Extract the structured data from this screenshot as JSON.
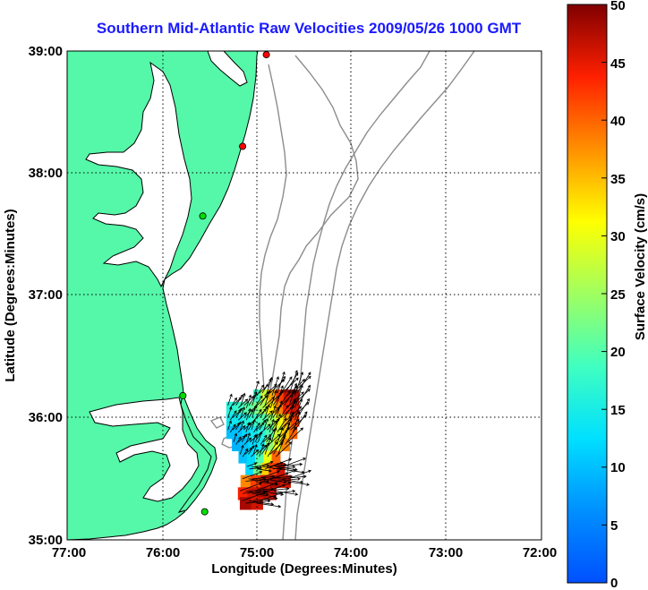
{
  "title": "Southern Mid-Atlantic Raw Velocities 2009/05/26 1000 GMT",
  "x_axis": {
    "label": "Longitude (Degrees:Minutes)",
    "ticks": [
      "77:00",
      "76:00",
      "75:00",
      "74:00",
      "73:00",
      "72:00"
    ]
  },
  "y_axis": {
    "label": "Latitude (Degrees:Minutes)",
    "ticks": [
      "39:00",
      "38:00",
      "37:00",
      "36:00",
      "35:00"
    ]
  },
  "colorbar": {
    "label": "Surface Velocity (cm/s)",
    "ticks": [
      "50",
      "45",
      "40",
      "35",
      "30",
      "25",
      "20",
      "15",
      "10",
      "5",
      "0"
    ],
    "min": 0,
    "max": 50,
    "colormap": "jet"
  },
  "colors": {
    "land": "#55f7a8",
    "coastline": "#000000",
    "bathymetry": "#8c8c8c",
    "grid": "#000000",
    "station": "#00dd00",
    "station_alt": "#ff0000",
    "title": "#1a1aff"
  },
  "chart_data": {
    "type": "map",
    "region": {
      "lon_min": -77,
      "lon_max": -72,
      "lat_min": 35,
      "lat_max": 39
    },
    "grid": true,
    "stations": [
      {
        "lon": -74.9,
        "lat": 38.97,
        "color": "red"
      },
      {
        "lon": -75.15,
        "lat": 38.22,
        "color": "red"
      },
      {
        "lon": -75.57,
        "lat": 37.65,
        "color": "green"
      },
      {
        "lon": -75.78,
        "lat": 36.18,
        "color": "green"
      },
      {
        "lon": -75.55,
        "lat": 35.23,
        "color": "green"
      }
    ],
    "velocity_field": {
      "lon_range": [
        -75.3,
        -74.55
      ],
      "lat_range": [
        35.25,
        36.2
      ],
      "speed_range_cm_s": [
        0,
        50
      ],
      "rows": [
        {
          "lat": 36.18,
          "lon_start": -75.0,
          "lon_end": -74.6,
          "speeds": [
            18,
            28,
            36,
            42,
            46,
            48
          ]
        },
        {
          "lat": 36.08,
          "lon_start": -75.28,
          "lon_end": -74.6,
          "speeds": [
            16,
            18,
            20,
            22,
            26,
            32,
            38,
            44,
            46
          ]
        },
        {
          "lat": 35.98,
          "lon_start": -75.28,
          "lon_end": -74.6,
          "speeds": [
            14,
            14,
            16,
            18,
            20,
            24,
            30,
            36,
            42
          ]
        },
        {
          "lat": 35.88,
          "lon_start": -75.28,
          "lon_end": -74.62,
          "speeds": [
            10,
            10,
            12,
            14,
            16,
            20,
            28,
            34,
            40
          ]
        },
        {
          "lat": 35.78,
          "lon_start": -75.22,
          "lon_end": -74.7,
          "speeds": [
            9,
            10,
            12,
            14,
            24,
            30,
            38
          ]
        },
        {
          "lat": 35.68,
          "lon_start": -75.15,
          "lon_end": -74.8,
          "speeds": [
            10,
            12,
            20,
            30,
            40
          ]
        },
        {
          "lat": 35.58,
          "lon_start": -75.08,
          "lon_end": -74.75,
          "speeds": [
            12,
            22,
            34,
            42,
            46
          ]
        },
        {
          "lat": 35.48,
          "lon_start": -75.12,
          "lon_end": -74.7,
          "speeds": [
            38,
            42,
            46,
            48,
            46
          ]
        },
        {
          "lat": 35.38,
          "lon_start": -75.15,
          "lon_end": -74.85,
          "speeds": [
            44,
            46,
            48,
            46
          ]
        },
        {
          "lat": 35.3,
          "lon_start": -75.12,
          "lon_end": -75.0,
          "speeds": [
            48,
            46
          ]
        }
      ]
    }
  }
}
